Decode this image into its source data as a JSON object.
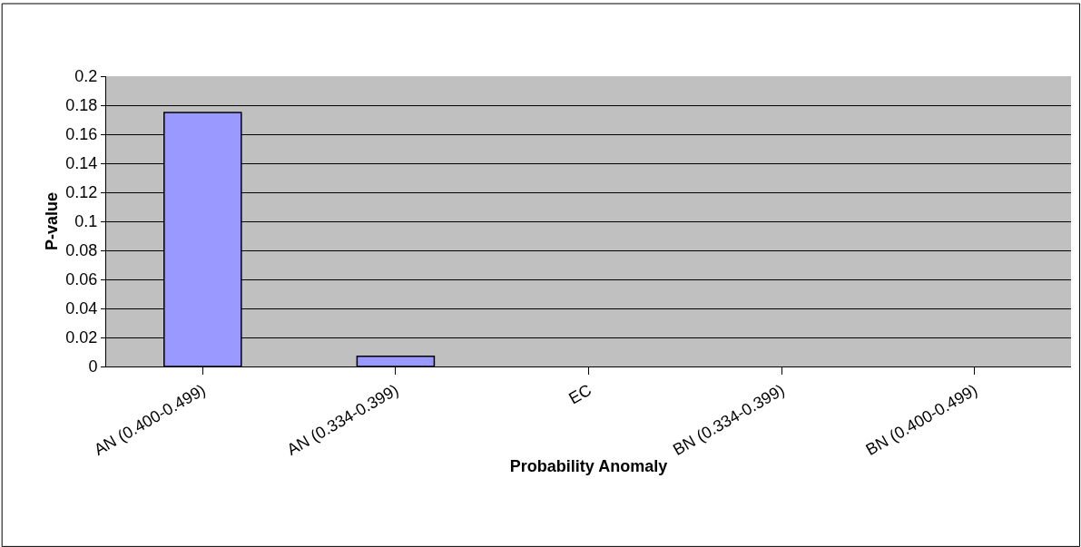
{
  "chart_data": {
    "type": "bar",
    "xlabel": "Probability Anomaly",
    "ylabel": "P-value",
    "categories": [
      "AN (0.400-0.499)",
      "AN (0.334-0.399)",
      "EC",
      "BN (0.334-0.399)",
      "BN (0.400-0.499)"
    ],
    "values": [
      0.175,
      0.007,
      0,
      0,
      0
    ],
    "color": "#9999ff",
    "ylim": [
      0,
      0.2
    ],
    "yticks": [
      0,
      0.02,
      0.04,
      0.06,
      0.08,
      0.1,
      0.12,
      0.14,
      0.16,
      0.18,
      0.2
    ],
    "grid": "y"
  }
}
